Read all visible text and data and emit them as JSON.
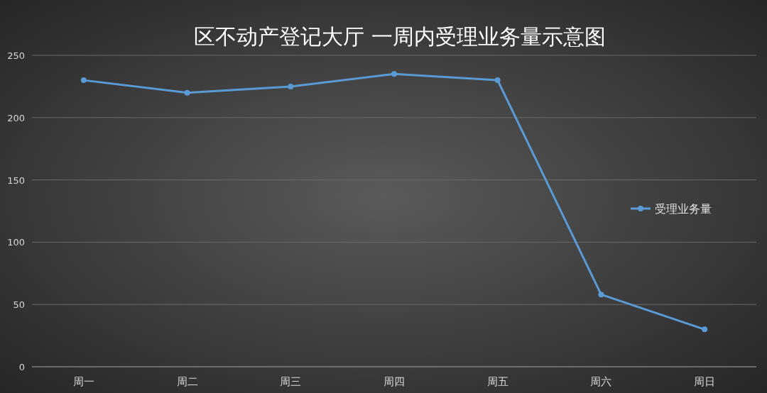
{
  "chart_data": {
    "type": "line",
    "title": "区不动产登记大厅 一周内受理业务量示意图",
    "categories": [
      "周一",
      "周二",
      "周三",
      "周四",
      "周五",
      "周六",
      "周日"
    ],
    "series": [
      {
        "name": "受理业务量",
        "color": "#5b9bd5",
        "values": [
          230,
          220,
          225,
          235,
          230,
          58,
          30
        ]
      }
    ],
    "ylim": [
      0,
      250
    ],
    "yticks": [
      0,
      50,
      100,
      150,
      200,
      250
    ],
    "grid": "y",
    "legend": "right",
    "marker": "circle",
    "line_style": "solid"
  }
}
